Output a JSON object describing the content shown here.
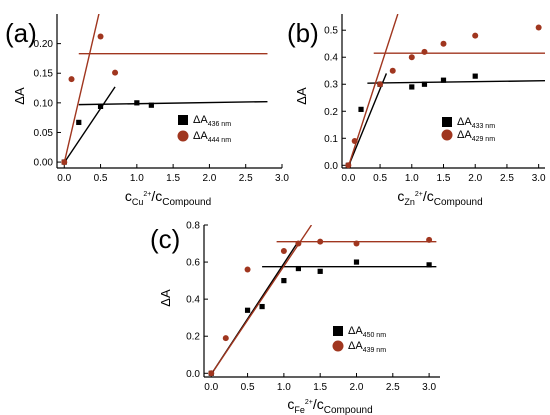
{
  "chart_data": [
    {
      "panel": "(a)",
      "type": "scatter",
      "xlabel": {
        "main": "c",
        "sub": "Cu",
        "sup": "2+",
        "tail": "/c",
        "tailsub": "Compound"
      },
      "ylabel": "ΔA",
      "xlim": [
        -0.1,
        3.0
      ],
      "ylim": [
        -0.01,
        0.25
      ],
      "xticks": [
        "0.0",
        "0.5",
        "1.0",
        "1.5",
        "2.0",
        "2.5",
        "3.0"
      ],
      "xtickvals": [
        0,
        0.5,
        1,
        1.5,
        2,
        2.5,
        3
      ],
      "yticks": [
        "0.00",
        "0.05",
        "0.10",
        "0.15",
        "0.20"
      ],
      "ytickvals": [
        0,
        0.05,
        0.1,
        0.15,
        0.2
      ],
      "series": [
        {
          "name": "ΔA",
          "wl": "436 nm",
          "marker": "square",
          "color": "#000000",
          "x": [
            0.0,
            0.2,
            0.5,
            1.0,
            1.2
          ],
          "y": [
            0.0,
            0.067,
            0.094,
            0.1,
            0.096
          ]
        },
        {
          "name": "ΔA",
          "wl": "444 nm",
          "marker": "circle",
          "color": "#a0361f",
          "x": [
            0.0,
            0.1,
            0.5,
            0.7
          ],
          "y": [
            0.0,
            0.14,
            0.212,
            0.151
          ]
        }
      ],
      "fit_lines": [
        {
          "color": "#000000",
          "x": [
            0.0,
            0.7
          ],
          "y": [
            -0.001,
            0.127
          ]
        },
        {
          "color": "#000000",
          "x": [
            0.2,
            2.8
          ],
          "y": [
            0.097,
            0.102
          ]
        },
        {
          "color": "#a0361f",
          "x": [
            0.0,
            0.5
          ],
          "y": [
            -0.001,
            0.262
          ]
        },
        {
          "color": "#a0361f",
          "x": [
            0.2,
            2.8
          ],
          "y": [
            0.183,
            0.183
          ]
        }
      ],
      "legend_position": "center-right"
    },
    {
      "panel": "(b)",
      "type": "scatter",
      "xlabel": {
        "main": "c",
        "sub": "Zn",
        "sup": "2+",
        "tail": "/c",
        "tailsub": "Compound"
      },
      "ylabel": "ΔA",
      "xlim": [
        -0.1,
        3.1
      ],
      "ylim": [
        -0.01,
        0.56
      ],
      "xticks": [
        "0.0",
        "0.5",
        "1.0",
        "1.5",
        "2.0",
        "2.5",
        "3.0"
      ],
      "xtickvals": [
        0,
        0.5,
        1,
        1.5,
        2,
        2.5,
        3
      ],
      "yticks": [
        "0.0",
        "0.1",
        "0.2",
        "0.3",
        "0.4",
        "0.5"
      ],
      "ytickvals": [
        0,
        0.1,
        0.2,
        0.3,
        0.4,
        0.5
      ],
      "series": [
        {
          "name": "ΔA",
          "wl": "433 nm",
          "marker": "square",
          "color": "#000000",
          "x": [
            0.0,
            0.2,
            0.5,
            1.0,
            1.2,
            1.5,
            2.0
          ],
          "y": [
            0.0,
            0.207,
            0.3,
            0.29,
            0.3,
            0.315,
            0.33
          ]
        },
        {
          "name": "ΔA",
          "wl": "429 nm",
          "marker": "circle",
          "color": "#a0361f",
          "x": [
            0.0,
            0.1,
            0.5,
            0.7,
            1.0,
            1.2,
            1.5,
            2.0,
            3.0
          ],
          "y": [
            0.0,
            0.09,
            0.3,
            0.35,
            0.4,
            0.42,
            0.45,
            0.48,
            0.51
          ]
        }
      ],
      "fit_lines": [
        {
          "color": "#000000",
          "x": [
            0.0,
            0.6
          ],
          "y": [
            -0.005,
            0.34
          ]
        },
        {
          "color": "#000000",
          "x": [
            0.3,
            3.1
          ],
          "y": [
            0.304,
            0.313
          ]
        },
        {
          "color": "#a0361f",
          "x": [
            0.0,
            0.78
          ],
          "y": [
            -0.005,
            0.56
          ]
        },
        {
          "color": "#a0361f",
          "x": [
            0.4,
            3.1
          ],
          "y": [
            0.415,
            0.415
          ]
        }
      ],
      "legend_position": "center-right"
    },
    {
      "panel": "(c)",
      "type": "scatter",
      "xlabel": {
        "main": "c",
        "sub": "Fe",
        "sup": "2+",
        "tail": "/c",
        "tailsub": "Compound"
      },
      "ylabel": "ΔA",
      "xlim": [
        -0.1,
        3.15
      ],
      "ylim": [
        -0.02,
        0.8
      ],
      "xticks": [
        "0.0",
        "0.5",
        "1.0",
        "1.5",
        "2.0",
        "2.5",
        "3.0"
      ],
      "xtickvals": [
        0,
        0.5,
        1,
        1.5,
        2,
        2.5,
        3
      ],
      "yticks": [
        "0.0",
        "0.2",
        "0.4",
        "0.6",
        "0.8"
      ],
      "ytickvals": [
        0,
        0.2,
        0.4,
        0.6,
        0.8
      ],
      "series": [
        {
          "name": "ΔA",
          "wl": "450 nm",
          "marker": "square",
          "color": "#000000",
          "x": [
            0.0,
            0.5,
            0.7,
            1.0,
            1.2,
            1.5,
            2.0,
            3.0
          ],
          "y": [
            0.0,
            0.34,
            0.36,
            0.5,
            0.565,
            0.55,
            0.6,
            0.585
          ]
        },
        {
          "name": "ΔA",
          "wl": "439 nm",
          "marker": "circle",
          "color": "#a0361f",
          "x": [
            0.0,
            0.2,
            0.5,
            1.0,
            1.2,
            1.5,
            2.0,
            3.0
          ],
          "y": [
            0.0,
            0.19,
            0.56,
            0.66,
            0.7,
            0.71,
            0.7,
            0.72
          ]
        }
      ],
      "fit_lines": [
        {
          "color": "#000000",
          "x": [
            0.0,
            1.18
          ],
          "y": [
            -0.005,
            0.7
          ]
        },
        {
          "color": "#000000",
          "x": [
            0.7,
            3.1
          ],
          "y": [
            0.575,
            0.575
          ]
        },
        {
          "color": "#a0361f",
          "x": [
            0.0,
            1.38
          ],
          "y": [
            -0.005,
            0.8
          ]
        },
        {
          "color": "#a0361f",
          "x": [
            0.9,
            3.1
          ],
          "y": [
            0.71,
            0.71
          ]
        }
      ],
      "legend_position": "center-right"
    }
  ]
}
